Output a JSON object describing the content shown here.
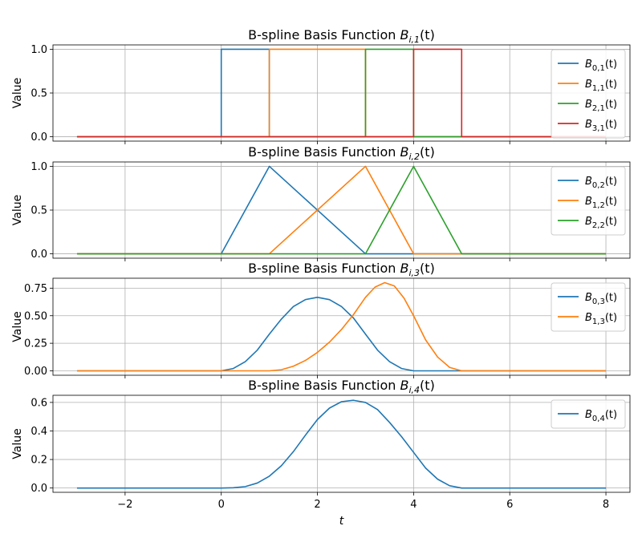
{
  "chart_data": [
    {
      "type": "line",
      "title": "B-spline Basis Function B_{i,1}(t)",
      "title_main": "B-spline Basis Function ",
      "title_sym": "B",
      "title_sub": "i,1",
      "title_tail": "(t)",
      "ylabel": "Value",
      "xlim": [
        -3.5,
        8.5
      ],
      "ylim": [
        -0.05,
        1.05
      ],
      "yticks": [
        0.0,
        0.5,
        1.0
      ],
      "ytick_labels": [
        "0.0",
        "0.5",
        "1.0"
      ],
      "grid": true,
      "legend_position": "right",
      "series": [
        {
          "name": "B_{0,1}(t)",
          "sub": "0,1",
          "color": "#1f77b4",
          "x": [
            -3,
            0,
            0,
            1,
            1,
            8
          ],
          "y": [
            0,
            0,
            1,
            1,
            0,
            0
          ]
        },
        {
          "name": "B_{1,1}(t)",
          "sub": "1,1",
          "color": "#ff7f0e",
          "x": [
            -3,
            1,
            1,
            3,
            3,
            8
          ],
          "y": [
            0,
            0,
            1,
            1,
            0,
            0
          ]
        },
        {
          "name": "B_{2,1}(t)",
          "sub": "2,1",
          "color": "#2ca02c",
          "x": [
            -3,
            3,
            3,
            4,
            4,
            8
          ],
          "y": [
            0,
            0,
            1,
            1,
            0,
            0
          ]
        },
        {
          "name": "B_{3,1}(t)",
          "sub": "3,1",
          "color": "#d62728",
          "x": [
            -3,
            4,
            4,
            5,
            5,
            8
          ],
          "y": [
            0,
            0,
            1,
            1,
            0,
            0
          ]
        }
      ]
    },
    {
      "type": "line",
      "title": "B-spline Basis Function B_{i,2}(t)",
      "title_main": "B-spline Basis Function ",
      "title_sym": "B",
      "title_sub": "i,2",
      "title_tail": "(t)",
      "ylabel": "Value",
      "xlim": [
        -3.5,
        8.5
      ],
      "ylim": [
        -0.05,
        1.05
      ],
      "yticks": [
        0.0,
        0.5,
        1.0
      ],
      "ytick_labels": [
        "0.0",
        "0.5",
        "1.0"
      ],
      "grid": true,
      "legend_position": "right",
      "series": [
        {
          "name": "B_{0,2}(t)",
          "sub": "0,2",
          "color": "#1f77b4",
          "x": [
            -3,
            0,
            1,
            3,
            8
          ],
          "y": [
            0,
            0,
            1,
            0,
            0
          ]
        },
        {
          "name": "B_{1,2}(t)",
          "sub": "1,2",
          "color": "#ff7f0e",
          "x": [
            -3,
            1,
            3,
            4,
            8
          ],
          "y": [
            0,
            0,
            1,
            0,
            0
          ]
        },
        {
          "name": "B_{2,2}(t)",
          "sub": "2,2",
          "color": "#2ca02c",
          "x": [
            -3,
            3,
            4,
            5,
            8
          ],
          "y": [
            0,
            0,
            1,
            0,
            0
          ]
        }
      ]
    },
    {
      "type": "line",
      "title": "B-spline Basis Function B_{i,3}(t)",
      "title_main": "B-spline Basis Function ",
      "title_sym": "B",
      "title_sub": "i,3",
      "title_tail": "(t)",
      "ylabel": "Value",
      "xlim": [
        -3.5,
        8.5
      ],
      "ylim": [
        -0.04,
        0.84
      ],
      "yticks": [
        0.0,
        0.25,
        0.5,
        0.75
      ],
      "ytick_labels": [
        "0.00",
        "0.25",
        "0.50",
        "0.75"
      ],
      "grid": true,
      "legend_position": "top-right",
      "series": [
        {
          "name": "B_{0,3}(t)",
          "sub": "0,3",
          "color": "#1f77b4",
          "x": [
            -3,
            0,
            0.25,
            0.5,
            0.75,
            1,
            1.25,
            1.5,
            1.75,
            2,
            2.25,
            2.5,
            2.75,
            3,
            3.25,
            3.5,
            3.75,
            4,
            8
          ],
          "y": [
            0,
            0,
            0.021,
            0.083,
            0.188,
            0.333,
            0.469,
            0.583,
            0.646,
            0.667,
            0.646,
            0.583,
            0.479,
            0.333,
            0.188,
            0.083,
            0.021,
            0,
            0
          ]
        },
        {
          "name": "B_{1,3}(t)",
          "sub": "1,3",
          "color": "#ff7f0e",
          "x": [
            -3,
            1,
            1.25,
            1.5,
            1.75,
            2,
            2.25,
            2.5,
            2.75,
            3,
            3.2,
            3.4,
            3.6,
            3.8,
            4,
            4.25,
            4.5,
            4.75,
            5,
            8
          ],
          "y": [
            0,
            0,
            0.01,
            0.042,
            0.094,
            0.167,
            0.26,
            0.375,
            0.51,
            0.667,
            0.76,
            0.8,
            0.77,
            0.66,
            0.5,
            0.281,
            0.125,
            0.031,
            0,
            0
          ]
        }
      ]
    },
    {
      "type": "line",
      "title": "B-spline Basis Function B_{i,4}(t)",
      "title_main": "B-spline Basis Function ",
      "title_sym": "B",
      "title_sub": "i,4",
      "title_tail": "(t)",
      "ylabel": "Value",
      "xlabel": "t",
      "xlim": [
        -3.5,
        8.5
      ],
      "ylim": [
        -0.03,
        0.65
      ],
      "yticks": [
        0.0,
        0.2,
        0.4,
        0.6
      ],
      "ytick_labels": [
        "0.0",
        "0.2",
        "0.4",
        "0.6"
      ],
      "xticks": [
        -2,
        0,
        2,
        4,
        6,
        8
      ],
      "xtick_labels": [
        "−2",
        "0",
        "2",
        "4",
        "6",
        "8"
      ],
      "grid": true,
      "legend_position": "top-right",
      "series": [
        {
          "name": "B_{0,4}(t)",
          "sub": "0,4",
          "color": "#1f77b4",
          "x": [
            -3,
            0,
            0.25,
            0.5,
            0.75,
            1,
            1.25,
            1.5,
            1.75,
            2,
            2.25,
            2.5,
            2.75,
            3,
            3.25,
            3.5,
            3.75,
            4,
            4.25,
            4.5,
            4.75,
            5,
            8
          ],
          "y": [
            0,
            0,
            0.002,
            0.01,
            0.035,
            0.083,
            0.156,
            0.255,
            0.37,
            0.48,
            0.56,
            0.605,
            0.615,
            0.6,
            0.55,
            0.46,
            0.36,
            0.25,
            0.14,
            0.062,
            0.016,
            0,
            0
          ]
        }
      ]
    }
  ]
}
